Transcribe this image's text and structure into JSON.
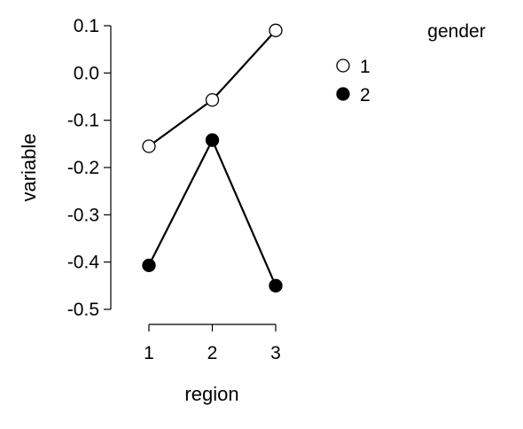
{
  "chart_data": {
    "type": "line",
    "xlabel": "region",
    "ylabel": "variable",
    "categories": [
      "1",
      "2",
      "3"
    ],
    "ylim": [
      -0.5,
      0.1
    ],
    "yticks": [
      "-0.5",
      "-0.4",
      "-0.3",
      "-0.2",
      "-0.1",
      "0.0",
      "0.1"
    ],
    "legend": {
      "title": "gender",
      "position": "top-right"
    },
    "series": [
      {
        "name": "1",
        "values": [
          -0.155,
          -0.057,
          0.09
        ],
        "marker": "open-circle",
        "color": "#000000"
      },
      {
        "name": "2",
        "values": [
          -0.407,
          -0.142,
          -0.45
        ],
        "marker": "filled-circle",
        "color": "#000000"
      }
    ]
  }
}
